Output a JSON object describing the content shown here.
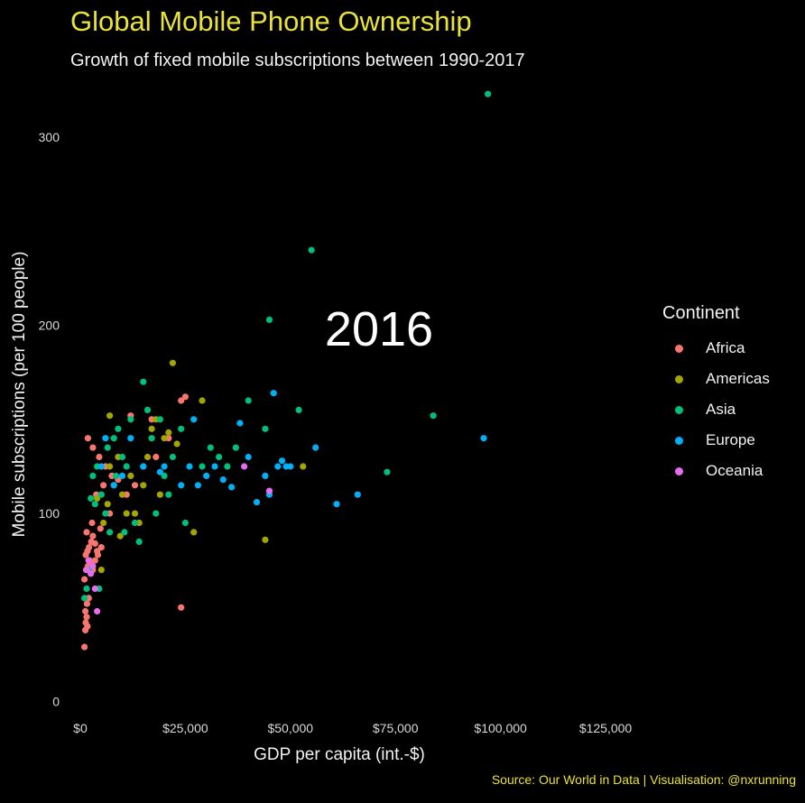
{
  "header": {
    "title": "Global Mobile Phone Ownership",
    "subtitle": "Growth of fixed mobile subscriptions between 1990-2017"
  },
  "caption": "Source: Our World in Data | Visualisation: @nxrunning",
  "colors": {
    "background": "#000000",
    "title": "#e8e23a",
    "Africa": "#f8766d",
    "Americas": "#a3a500",
    "Asia": "#00bf7d",
    "Europe": "#00b0f6",
    "Oceania": "#e76bf3"
  },
  "chart_data": {
    "type": "scatter",
    "title": "Global Mobile Phone Ownership",
    "subtitle": "Growth of fixed mobile subscriptions between 1990-2017",
    "xlabel": "GDP per capita (int.-$)",
    "ylabel": "Mobile subscriptions (per 100 people)",
    "year_label": "2016",
    "xlim": [
      -3000,
      128000
    ],
    "ylim": [
      -5,
      325
    ],
    "x_ticks": [
      0,
      25000,
      50000,
      75000,
      100000,
      125000
    ],
    "x_tick_labels": [
      "$0",
      "$25,000",
      "$50,000",
      "$75,000",
      "$100,000",
      "$125,000"
    ],
    "y_ticks": [
      0,
      100,
      200,
      300
    ],
    "y_tick_labels": [
      "0",
      "100",
      "200",
      "300"
    ],
    "grid": false,
    "legend": {
      "title": "Continent",
      "position": "right",
      "entries": [
        "Africa",
        "Americas",
        "Asia",
        "Europe",
        "Oceania"
      ]
    },
    "series": [
      {
        "name": "Africa",
        "points": [
          [
            1000,
            29
          ],
          [
            1200,
            38
          ],
          [
            1300,
            42
          ],
          [
            1500,
            45
          ],
          [
            1700,
            40
          ],
          [
            1200,
            48
          ],
          [
            1600,
            52
          ],
          [
            2000,
            55
          ],
          [
            1000,
            65
          ],
          [
            1400,
            70
          ],
          [
            1800,
            72
          ],
          [
            2200,
            75
          ],
          [
            1300,
            78
          ],
          [
            1700,
            80
          ],
          [
            2100,
            82
          ],
          [
            2600,
            85
          ],
          [
            3000,
            88
          ],
          [
            3500,
            84
          ],
          [
            4000,
            80
          ],
          [
            1500,
            90
          ],
          [
            2000,
            75
          ],
          [
            2400,
            73
          ],
          [
            3000,
            70
          ],
          [
            3500,
            75
          ],
          [
            4200,
            78
          ],
          [
            5000,
            82
          ],
          [
            1800,
            140
          ],
          [
            3000,
            135
          ],
          [
            4500,
            130
          ],
          [
            6000,
            125
          ],
          [
            7500,
            120
          ],
          [
            9000,
            118
          ],
          [
            11000,
            110
          ],
          [
            13000,
            115
          ],
          [
            15000,
            125
          ],
          [
            17000,
            150
          ],
          [
            12000,
            152
          ],
          [
            18000,
            130
          ],
          [
            21000,
            140
          ],
          [
            24000,
            160
          ],
          [
            25000,
            162
          ],
          [
            24000,
            50
          ],
          [
            5500,
            115
          ],
          [
            7000,
            100
          ],
          [
            3800,
            110
          ],
          [
            2800,
            95
          ],
          [
            4800,
            92
          ]
        ]
      },
      {
        "name": "Americas",
        "points": [
          [
            4000,
            108
          ],
          [
            5500,
            95
          ],
          [
            6500,
            105
          ],
          [
            7000,
            125
          ],
          [
            8000,
            115
          ],
          [
            9000,
            130
          ],
          [
            10000,
            110
          ],
          [
            11000,
            100
          ],
          [
            12000,
            120
          ],
          [
            13000,
            100
          ],
          [
            14000,
            95
          ],
          [
            15000,
            115
          ],
          [
            16000,
            130
          ],
          [
            17000,
            145
          ],
          [
            18000,
            150
          ],
          [
            19000,
            110
          ],
          [
            20000,
            140
          ],
          [
            21000,
            143
          ],
          [
            22000,
            180
          ],
          [
            23000,
            137
          ],
          [
            27000,
            90
          ],
          [
            29000,
            160
          ],
          [
            44000,
            86
          ],
          [
            53000,
            125
          ],
          [
            7000,
            152
          ],
          [
            5000,
            70
          ],
          [
            9500,
            88
          ]
        ]
      },
      {
        "name": "Asia",
        "points": [
          [
            1000,
            55
          ],
          [
            1500,
            60
          ],
          [
            2000,
            70
          ],
          [
            2500,
            108
          ],
          [
            3000,
            120
          ],
          [
            3500,
            105
          ],
          [
            4000,
            125
          ],
          [
            4500,
            60
          ],
          [
            5000,
            110
          ],
          [
            6000,
            100
          ],
          [
            7000,
            90
          ],
          [
            8000,
            140
          ],
          [
            9000,
            145
          ],
          [
            10000,
            130
          ],
          [
            11000,
            125
          ],
          [
            12000,
            150
          ],
          [
            13000,
            95
          ],
          [
            14000,
            85
          ],
          [
            15000,
            170
          ],
          [
            16000,
            155
          ],
          [
            17000,
            140
          ],
          [
            18000,
            100
          ],
          [
            19000,
            150
          ],
          [
            20000,
            120
          ],
          [
            21000,
            110
          ],
          [
            22000,
            130
          ],
          [
            24000,
            145
          ],
          [
            25000,
            95
          ],
          [
            29000,
            125
          ],
          [
            31000,
            135
          ],
          [
            33000,
            130
          ],
          [
            35000,
            125
          ],
          [
            37000,
            135
          ],
          [
            40000,
            160
          ],
          [
            44000,
            145
          ],
          [
            45000,
            203
          ],
          [
            52000,
            155
          ],
          [
            55000,
            240
          ],
          [
            73000,
            122
          ],
          [
            84000,
            152
          ],
          [
            97000,
            323
          ],
          [
            6500,
            135
          ],
          [
            10500,
            90
          ],
          [
            8500,
            120
          ]
        ]
      },
      {
        "name": "Europe",
        "points": [
          [
            6000,
            140
          ],
          [
            8000,
            115
          ],
          [
            10000,
            120
          ],
          [
            12000,
            140
          ],
          [
            15000,
            125
          ],
          [
            20000,
            125
          ],
          [
            24000,
            115
          ],
          [
            26000,
            125
          ],
          [
            27000,
            150
          ],
          [
            28000,
            115
          ],
          [
            30000,
            120
          ],
          [
            32000,
            125
          ],
          [
            34000,
            118
          ],
          [
            36000,
            114
          ],
          [
            38000,
            148
          ],
          [
            40000,
            130
          ],
          [
            42000,
            106
          ],
          [
            44000,
            120
          ],
          [
            45000,
            110
          ],
          [
            46000,
            164
          ],
          [
            47000,
            125
          ],
          [
            48000,
            128
          ],
          [
            49000,
            125
          ],
          [
            50000,
            125
          ],
          [
            56000,
            135
          ],
          [
            61000,
            105
          ],
          [
            66000,
            110
          ],
          [
            96000,
            140
          ],
          [
            5000,
            125
          ],
          [
            19000,
            122
          ]
        ]
      },
      {
        "name": "Oceania",
        "points": [
          [
            1500,
            70
          ],
          [
            2000,
            75
          ],
          [
            2500,
            68
          ],
          [
            3000,
            72
          ],
          [
            3500,
            60
          ],
          [
            4000,
            48
          ],
          [
            39000,
            125
          ],
          [
            45000,
            112
          ]
        ]
      }
    ]
  }
}
